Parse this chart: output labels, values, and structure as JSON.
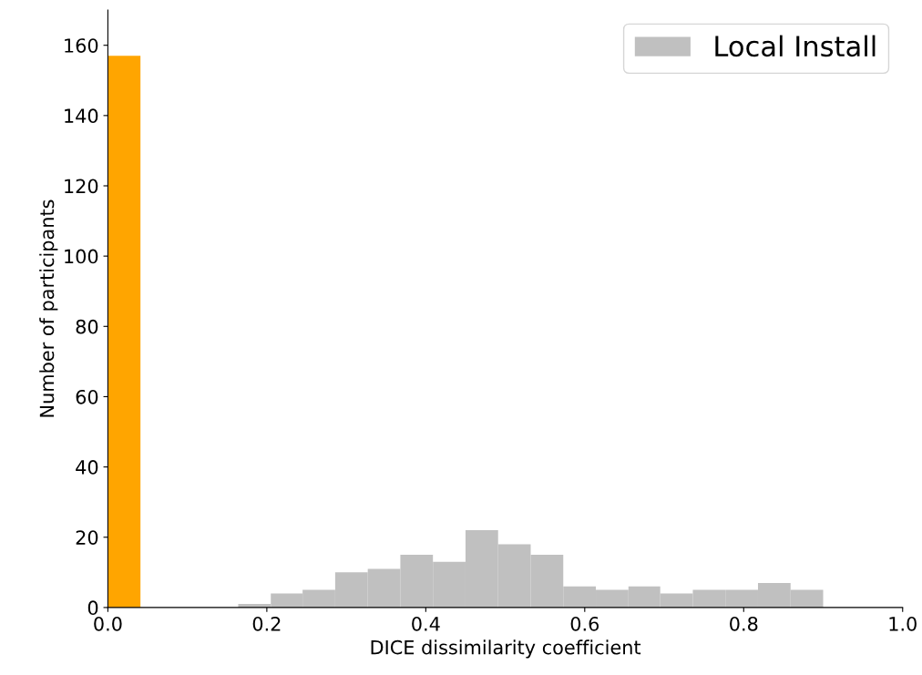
{
  "chart_data": {
    "type": "histogram",
    "xlabel": "DICE dissimilarity coefficient",
    "ylabel": "Number of participants",
    "xlim": [
      0,
      1
    ],
    "xticks": [
      {
        "value": 0,
        "label": "0.0"
      },
      0.2,
      0.4,
      0.6,
      0.8,
      {
        "value": 1,
        "label": "1.0"
      }
    ],
    "ylim": [
      0,
      170
    ],
    "yticks": [
      0,
      20,
      40,
      60,
      80,
      100,
      120,
      140,
      160
    ],
    "legend": "top right",
    "bins": [
      0,
      0.041,
      0.164,
      0.205,
      0.245,
      0.286,
      0.327,
      0.368,
      0.409,
      0.45,
      0.491,
      0.532,
      0.573,
      0.614,
      0.655,
      0.695,
      0.736,
      0.777,
      0.818,
      0.859,
      0.9
    ],
    "series": [
      {
        "name": "Local Install",
        "color": "#c0c0c0",
        "values": [
          0,
          0,
          1,
          4,
          5,
          10,
          11,
          15,
          13,
          22,
          18,
          15,
          6,
          5,
          6,
          4,
          5,
          5,
          7,
          5
        ]
      },
      {
        "color": "#ffa500",
        "values": [
          157,
          0,
          0,
          0,
          0,
          0,
          0,
          0,
          0,
          0,
          0,
          0,
          0,
          0,
          0,
          0,
          0,
          0,
          0,
          0
        ]
      }
    ]
  }
}
